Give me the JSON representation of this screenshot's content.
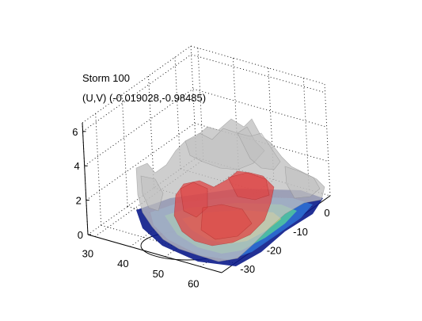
{
  "figure": {
    "title_line1": "Storm 100",
    "title_line2": "(U,V) (-0.019028,-0.98485)"
  },
  "chart_data": {
    "type": "surface3d",
    "title": "Storm 100",
    "subtitle": "(U,V) (-0.019028,-0.98485)",
    "xlabel": "",
    "ylabel": "",
    "zlabel": "",
    "x_ticks": [
      30,
      40,
      50,
      60
    ],
    "y_ticks": [
      0,
      -10,
      -20,
      -30
    ],
    "z_ticks": [
      0,
      2,
      4,
      6
    ],
    "xlim": [
      28,
      66
    ],
    "ylim": [
      -35,
      6
    ],
    "zlim": [
      0,
      6.5
    ],
    "grid": true,
    "legend": "none",
    "series": [
      {
        "name": "",
        "kind": "isosurface",
        "color": "#c0c0c0",
        "description_level": "outer"
      },
      {
        "name": "",
        "kind": "isosurface",
        "color": "#e04040",
        "description_level": "inner"
      },
      {
        "name": "",
        "kind": "filled-contour-slice",
        "colors": [
          "#0a1a8a",
          "#2d6fd1",
          "#4fc3a1",
          "#c8e26a"
        ]
      }
    ],
    "colors": {
      "outer": "#c0c0c0",
      "inner": "#e04040",
      "slice_low": "#0a1a8a",
      "slice_high": "#c8e26a"
    }
  }
}
